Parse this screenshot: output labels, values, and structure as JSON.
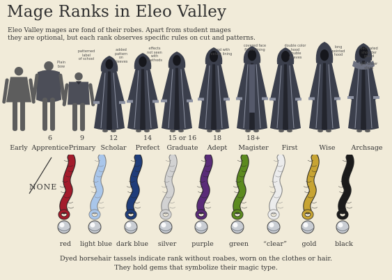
{
  "title": "Mage Ranks in Eleo Valley",
  "intro": [
    "Eleo Valley mages are fond of their robes. Apart from student mages",
    "they are optional, but each rank observes specific rules on cut and patterns."
  ],
  "figure_notes": [
    {
      "id": "primary",
      "text": "Plain\nbow"
    },
    {
      "id": "scholar",
      "text": "patterned\nlabel\nof school"
    },
    {
      "id": "prefect",
      "text": "added\npattern\non\nsleeves"
    },
    {
      "id": "graduate",
      "text": "effects\nnot seen with\nmethods"
    },
    {
      "id": "adept",
      "text": "hood with\nvelvet lining"
    },
    {
      "id": "magister",
      "text": "covered face\nflame lining"
    },
    {
      "id": "first",
      "text": "double color\nhood\ndouble sleeves"
    },
    {
      "id": "wise",
      "text": "long\npointed\nhood"
    },
    {
      "id": "archsage",
      "text": "decorated\nshoulder\nguard\n\ngift under\ncloak"
    }
  ],
  "ranks": [
    {
      "age": "",
      "name": "Early"
    },
    {
      "age": "6",
      "name": "Apprentice"
    },
    {
      "age": "9",
      "name": "Primary"
    },
    {
      "age": "12",
      "name": "Scholar"
    },
    {
      "age": "14",
      "name": "Prefect"
    },
    {
      "age": "15 or 16",
      "name": "Graduate"
    },
    {
      "age": "18",
      "name": "Adept"
    },
    {
      "age": "18+",
      "name": "Magister"
    },
    {
      "age": "",
      "name": "First"
    },
    {
      "age": "",
      "name": "Wise"
    },
    {
      "age": "",
      "name": "Archsage"
    }
  ],
  "none_label": "NONE",
  "tassels": [
    {
      "label": "red",
      "color": "#a31c2c"
    },
    {
      "label": "light blue",
      "color": "#a9c6ea"
    },
    {
      "label": "dark blue",
      "color": "#1f3d7a"
    },
    {
      "label": "silver",
      "color": "#d2d2d2"
    },
    {
      "label": "purple",
      "color": "#5a2c78"
    },
    {
      "label": "green",
      "color": "#5c8a1f"
    },
    {
      "label": "“clear”",
      "color": "#ececec"
    },
    {
      "label": "gold",
      "color": "#c7a433"
    },
    {
      "label": "black",
      "color": "#1b1b1b"
    }
  ],
  "footer": [
    "Dyed horsehair tassels indicate rank without roabes, worn on the clothes or hair.",
    "They hold gems that symbolize their magic type."
  ]
}
